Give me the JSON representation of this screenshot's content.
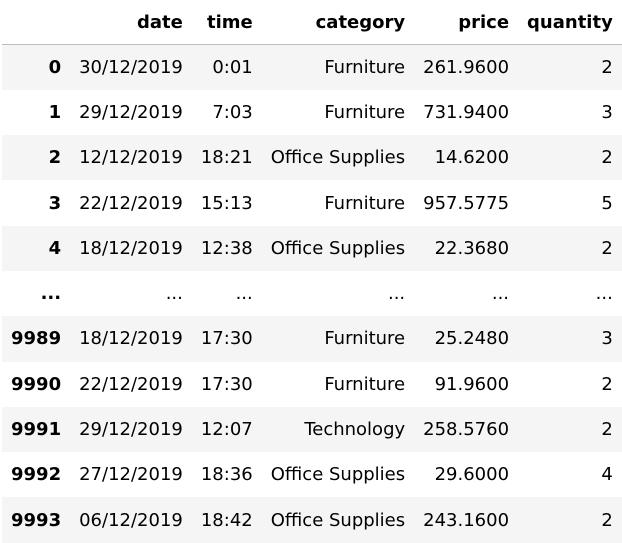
{
  "table": {
    "columns": [
      "",
      "date",
      "time",
      "category",
      "price",
      "quantity"
    ],
    "rows": [
      {
        "index": "0",
        "date": "30/12/2019",
        "time": "0:01",
        "category": "Furniture",
        "price": "261.9600",
        "quantity": "2"
      },
      {
        "index": "1",
        "date": "29/12/2019",
        "time": "7:03",
        "category": "Furniture",
        "price": "731.9400",
        "quantity": "3"
      },
      {
        "index": "2",
        "date": "12/12/2019",
        "time": "18:21",
        "category": "Office Supplies",
        "price": "14.6200",
        "quantity": "2"
      },
      {
        "index": "3",
        "date": "22/12/2019",
        "time": "15:13",
        "category": "Furniture",
        "price": "957.5775",
        "quantity": "5"
      },
      {
        "index": "4",
        "date": "18/12/2019",
        "time": "12:38",
        "category": "Office Supplies",
        "price": "22.3680",
        "quantity": "2"
      },
      {
        "index": "...",
        "date": "...",
        "time": "...",
        "category": "...",
        "price": "...",
        "quantity": "..."
      },
      {
        "index": "9989",
        "date": "18/12/2019",
        "time": "17:30",
        "category": "Furniture",
        "price": "25.2480",
        "quantity": "3"
      },
      {
        "index": "9990",
        "date": "22/12/2019",
        "time": "17:30",
        "category": "Furniture",
        "price": "91.9600",
        "quantity": "2"
      },
      {
        "index": "9991",
        "date": "29/12/2019",
        "time": "12:07",
        "category": "Technology",
        "price": "258.5760",
        "quantity": "2"
      },
      {
        "index": "9992",
        "date": "27/12/2019",
        "time": "18:36",
        "category": "Office Supplies",
        "price": "29.6000",
        "quantity": "4"
      },
      {
        "index": "9993",
        "date": "06/12/2019",
        "time": "18:42",
        "category": "Office Supplies",
        "price": "243.1600",
        "quantity": "2"
      }
    ]
  },
  "colors": {
    "stripe": "#f5f5f5",
    "background": "#ffffff",
    "header_border": "#bdbdbd"
  }
}
